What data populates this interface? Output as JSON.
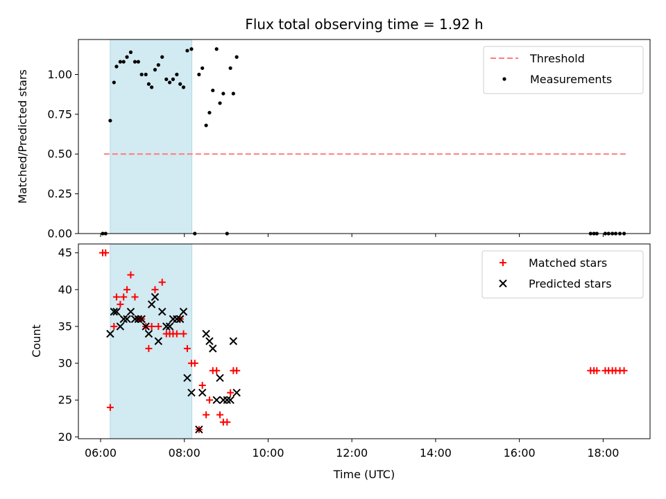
{
  "chart_data": {
    "title": "Flux total observing time = 1.92 h",
    "xlabel": "Time (UTC)",
    "x_unit": "hours UTC",
    "x_ticks": [
      6,
      8,
      10,
      12,
      14,
      16,
      18
    ],
    "x_tick_labels": [
      "06:00",
      "08:00",
      "10:00",
      "12:00",
      "14:00",
      "16:00",
      "18:00"
    ],
    "xlim": [
      5.47,
      19.12
    ],
    "shaded_interval": [
      6.23,
      8.18
    ],
    "shaded_color": "#add8e6",
    "panels": [
      {
        "type": "scatter",
        "ylabel": "Matched/Predicted stars",
        "ylim": [
          0,
          1.22
        ],
        "y_ticks": [
          0,
          0.25,
          0.5,
          0.75,
          1.0
        ],
        "y_tick_labels": [
          "0.00",
          "0.25",
          "0.50",
          "0.75",
          "1.00"
        ],
        "legend_position": "top-right",
        "series": [
          {
            "name": "Threshold",
            "kind": "dashed-line",
            "color": "#ff7b7b",
            "x": [
              6.08,
              18.55
            ],
            "y": [
              0.5,
              0.5
            ]
          },
          {
            "name": "Measurements",
            "kind": "dot",
            "color": "#000000",
            "x": [
              6.05,
              6.12,
              6.23,
              6.32,
              6.38,
              6.47,
              6.55,
              6.63,
              6.72,
              6.82,
              6.9,
              6.98,
              7.08,
              7.15,
              7.22,
              7.3,
              7.38,
              7.47,
              7.57,
              7.65,
              7.73,
              7.82,
              7.9,
              7.98,
              8.07,
              8.17,
              8.25,
              8.35,
              8.43,
              8.52,
              8.6,
              8.68,
              8.77,
              8.85,
              8.93,
              9.02,
              9.1,
              9.17,
              9.25,
              17.7,
              17.78,
              17.85,
              18.05,
              18.13,
              18.22,
              18.3,
              18.4,
              18.5
            ],
            "y": [
              0.0,
              0.0,
              0.71,
              0.95,
              1.05,
              1.08,
              1.08,
              1.11,
              1.14,
              1.08,
              1.08,
              1.0,
              1.0,
              0.94,
              0.92,
              1.03,
              1.06,
              1.11,
              0.97,
              0.95,
              0.97,
              1.0,
              0.94,
              0.92,
              1.15,
              1.16,
              0.0,
              1.0,
              1.04,
              0.68,
              0.76,
              0.9,
              1.16,
              0.82,
              0.88,
              0.0,
              1.04,
              0.88,
              1.11,
              0.0,
              0.0,
              0.0,
              0.0,
              0.0,
              0.0,
              0.0,
              0.0,
              0.0
            ]
          }
        ]
      },
      {
        "type": "scatter",
        "ylabel": "Count",
        "ylim": [
          19.75,
          46.2
        ],
        "y_ticks": [
          20,
          25,
          30,
          35,
          40,
          45
        ],
        "y_tick_labels": [
          "20",
          "25",
          "30",
          "35",
          "40",
          "45"
        ],
        "legend_position": "top-right",
        "series": [
          {
            "name": "Matched stars",
            "kind": "plus",
            "color": "#ff0000",
            "x": [
              6.05,
              6.12,
              6.23,
              6.32,
              6.38,
              6.47,
              6.55,
              6.63,
              6.72,
              6.82,
              6.9,
              6.98,
              7.08,
              7.15,
              7.22,
              7.3,
              7.38,
              7.47,
              7.57,
              7.65,
              7.73,
              7.82,
              7.9,
              7.98,
              8.07,
              8.17,
              8.25,
              8.35,
              8.43,
              8.52,
              8.6,
              8.68,
              8.77,
              8.85,
              8.93,
              9.02,
              9.1,
              9.17,
              9.25,
              17.7,
              17.78,
              17.85,
              18.05,
              18.13,
              18.22,
              18.3,
              18.4,
              18.5
            ],
            "y": [
              45,
              45,
              24,
              35,
              39,
              38,
              39,
              40,
              42,
              39,
              36,
              36,
              35,
              32,
              35,
              40,
              35,
              41,
              34,
              34,
              34,
              34,
              36,
              34,
              32,
              30,
              30,
              21,
              27,
              23,
              25,
              29,
              29,
              23,
              22,
              22,
              26,
              29,
              29,
              29,
              29,
              29,
              29,
              29,
              29,
              29,
              29,
              29
            ]
          },
          {
            "name": "Predicted stars",
            "kind": "x",
            "color": "#000000",
            "x": [
              6.23,
              6.32,
              6.38,
              6.47,
              6.55,
              6.63,
              6.72,
              6.82,
              6.9,
              6.98,
              7.08,
              7.15,
              7.22,
              7.3,
              7.38,
              7.47,
              7.57,
              7.65,
              7.73,
              7.82,
              7.9,
              7.98,
              8.07,
              8.17,
              8.35,
              8.43,
              8.52,
              8.6,
              8.68,
              8.77,
              8.85,
              8.93,
              9.02,
              9.1,
              9.17,
              9.25
            ],
            "y": [
              34,
              37,
              37,
              35,
              36,
              36,
              37,
              36,
              36,
              36,
              35,
              34,
              38,
              39,
              33,
              37,
              35,
              35,
              36,
              36,
              36,
              37,
              28,
              26,
              21,
              26,
              34,
              33,
              32,
              25,
              28,
              25,
              25,
              25,
              33,
              26
            ]
          }
        ]
      }
    ]
  }
}
